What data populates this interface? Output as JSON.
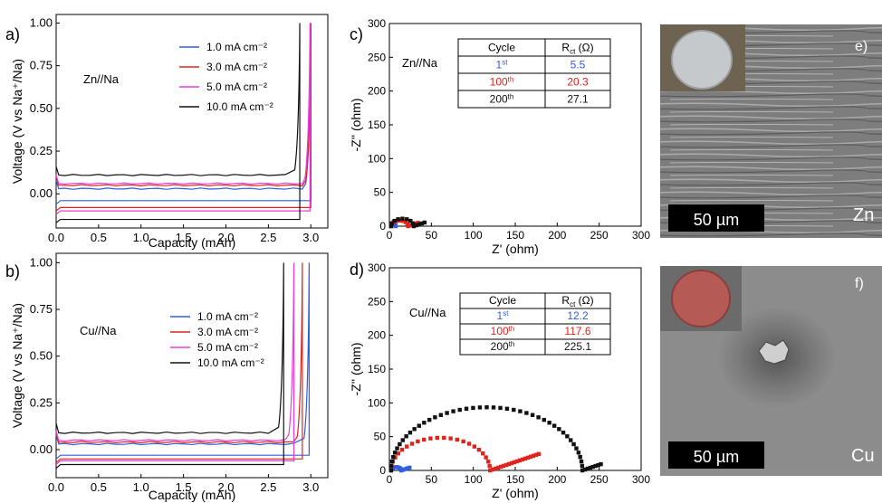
{
  "colors": {
    "blue": "#2f5fe0",
    "red": "#e0241c",
    "magenta": "#ee3cda",
    "black": "#111111",
    "sem_bg": "#8a8a8a",
    "disk_cu": "#b65a56",
    "disk_zn": "#c5c9cc"
  },
  "chart_data": [
    {
      "id": "a",
      "panel_label": "a)",
      "type": "line",
      "annotation": "Zn//Na",
      "xlabel": "Capacity (mAh)",
      "ylabel": "Voltage (V vs Na⁺/Na)",
      "xlim": [
        0,
        3.2
      ],
      "ylim": [
        -0.2,
        1.05
      ],
      "xticks": [
        "0.0",
        "0.5",
        "1.0",
        "1.5",
        "2.0",
        "2.5",
        "3.0"
      ],
      "yticks": [
        "0.00",
        "0.25",
        "0.50",
        "0.75",
        "1.00"
      ],
      "legend": "top-right",
      "series": [
        {
          "name": "1.0 mA cm⁻²",
          "color": "blue",
          "plateau": 0.03,
          "strip": -0.04,
          "end": 3.0
        },
        {
          "name": "3.0 mA cm⁻²",
          "color": "red",
          "plateau": 0.05,
          "strip": -0.08,
          "end": 3.0
        },
        {
          "name": "5.0 mA cm⁻²",
          "color": "magenta",
          "plateau": 0.06,
          "strip": -0.1,
          "end": 2.99
        },
        {
          "name": "10.0 mA cm⁻²",
          "color": "black",
          "plateau": 0.11,
          "strip": -0.15,
          "end": 2.87
        }
      ]
    },
    {
      "id": "b",
      "panel_label": "b)",
      "type": "line",
      "annotation": "Cu//Na",
      "xlabel": "Capacity (mAh)",
      "ylabel": "Voltage (V vs Na⁺/Na)",
      "xlim": [
        0,
        3.2
      ],
      "ylim": [
        -0.15,
        1.05
      ],
      "xticks": [
        "0.0",
        "0.5",
        "1.0",
        "1.5",
        "2.0",
        "2.5",
        "3.0"
      ],
      "yticks": [
        "0.00",
        "0.25",
        "0.50",
        "0.75",
        "1.00"
      ],
      "legend": "center-right",
      "series": [
        {
          "name": "1.0 mA cm⁻²",
          "color": "blue",
          "plateau": 0.03,
          "strip": -0.03,
          "end": 2.98
        },
        {
          "name": "3.0 mA cm⁻²",
          "color": "red",
          "plateau": 0.04,
          "strip": -0.05,
          "end": 2.9
        },
        {
          "name": "5.0 mA cm⁻²",
          "color": "magenta",
          "plateau": 0.05,
          "strip": -0.06,
          "end": 2.8
        },
        {
          "name": "10.0 mA cm⁻²",
          "color": "black",
          "plateau": 0.09,
          "strip": -0.08,
          "end": 2.68
        }
      ]
    },
    {
      "id": "c",
      "panel_label": "c)",
      "type": "scatter",
      "annotation": "Zn//Na",
      "xlabel": "Z' (ohm)",
      "ylabel": "-Z'' (ohm)",
      "xlim": [
        0,
        300
      ],
      "ylim": [
        0,
        300
      ],
      "xticks": [
        "0",
        "50",
        "100",
        "150",
        "200",
        "250",
        "300"
      ],
      "yticks": [
        "0",
        "50",
        "100",
        "150",
        "200",
        "250",
        "300"
      ],
      "series": [
        {
          "name": "1st",
          "color": "blue",
          "arcs": [
            [
              2,
              7.5
            ]
          ],
          "tail": null
        },
        {
          "name": "100th",
          "color": "red",
          "arcs": [
            [
              2,
              22.3
            ]
          ],
          "tail": [
            22.3,
            34
          ]
        },
        {
          "name": "200th",
          "color": "black",
          "arcs": [
            [
              2,
              29.1
            ]
          ],
          "tail": [
            29.1,
            42
          ]
        }
      ],
      "table": {
        "header": [
          "Cycle",
          "R",
          "ct",
          " (Ω)"
        ],
        "rows": [
          {
            "num": "1",
            "sup": "st",
            "value": "5.5",
            "color": "blue"
          },
          {
            "num": "100",
            "sup": "th",
            "value": "20.3",
            "color": "red"
          },
          {
            "num": "200",
            "sup": "th",
            "value": "27.1",
            "color": "black"
          }
        ]
      }
    },
    {
      "id": "d",
      "panel_label": "d)",
      "type": "scatter",
      "annotation": "Cu//Na",
      "xlabel": "Z' (ohm)",
      "ylabel": "-Z'' (ohm)",
      "xlim": [
        0,
        300
      ],
      "ylim": [
        0,
        300
      ],
      "xticks": [
        "0",
        "50",
        "100",
        "150",
        "200",
        "250",
        "300"
      ],
      "yticks": [
        "0",
        "50",
        "100",
        "150",
        "200",
        "250",
        "300"
      ],
      "series": [
        {
          "name": "1st",
          "color": "blue",
          "arcs": [
            [
              2,
              14.2
            ]
          ],
          "tail": [
            14.2,
            24
          ]
        },
        {
          "name": "100th",
          "color": "red",
          "arcs": [
            [
              2,
              120
            ]
          ],
          "tail": [
            120,
            178
          ]
        },
        {
          "name": "200th",
          "color": "black",
          "arcs": [
            [
              2,
              230
            ]
          ],
          "tail": [
            230,
            252
          ]
        }
      ],
      "table": {
        "header": [
          "Cycle",
          "R",
          "ct",
          " (Ω)"
        ],
        "rows": [
          {
            "num": "1",
            "sup": "st",
            "value": "12.2",
            "color": "blue"
          },
          {
            "num": "100",
            "sup": "th",
            "value": "117.6",
            "color": "red"
          },
          {
            "num": "200",
            "sup": "th",
            "value": "225.1",
            "color": "black"
          }
        ]
      }
    }
  ],
  "micrographs": [
    {
      "id": "e",
      "panel_label": "e)",
      "metal_label": "Zn",
      "scale_bar": "50 µm",
      "texture": "striated",
      "disk_color": "disk_zn"
    },
    {
      "id": "f",
      "panel_label": "f)",
      "metal_label": "Cu",
      "scale_bar": "50 µm",
      "texture": "smooth",
      "disk_color": "disk_cu"
    }
  ]
}
